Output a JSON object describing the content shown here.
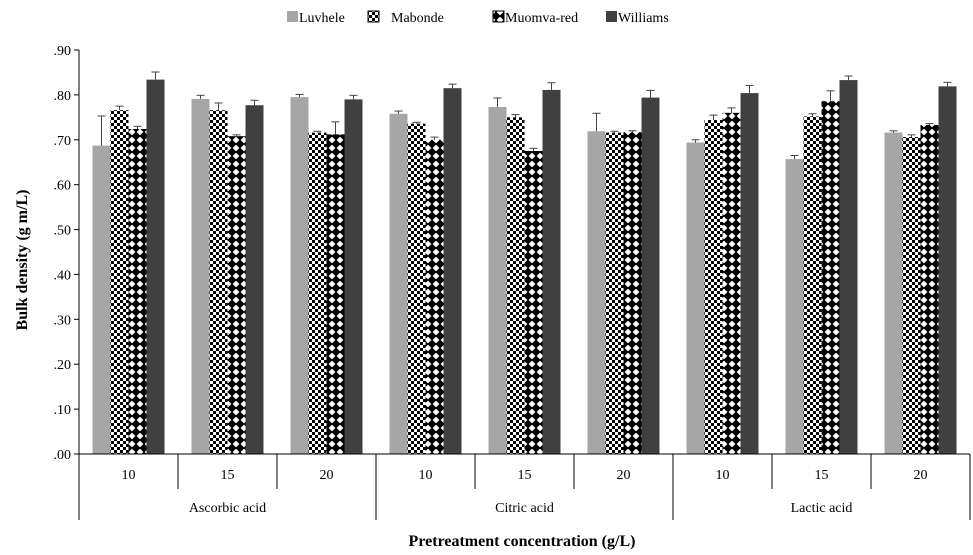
{
  "chart_data": {
    "type": "bar",
    "xlabel": "Pretreatment concentration (g/L)",
    "ylabel": "Bulk density (g m/L)",
    "ylim": [
      0,
      0.9
    ],
    "yticks": [
      ".00",
      ".10",
      ".20",
      ".30",
      ".40",
      ".50",
      ".60",
      ".70",
      ".80",
      ".90"
    ],
    "legend_position": "top-center",
    "groups": [
      {
        "label": "Ascorbic acid",
        "categories": [
          "10",
          "15",
          "20"
        ]
      },
      {
        "label": "Citric acid",
        "categories": [
          "10",
          "15",
          "20"
        ]
      },
      {
        "label": "Lactic acid",
        "categories": [
          "10",
          "15",
          "20"
        ]
      }
    ],
    "series": [
      {
        "name": "Luvhele",
        "pattern": "solid-light-gray",
        "color": "#a6a6a6",
        "values": [
          0.687,
          0.791,
          0.795,
          0.758,
          0.773,
          0.719,
          0.694,
          0.657,
          0.716
        ],
        "errors": [
          0.066,
          0.008,
          0.006,
          0.006,
          0.02,
          0.04,
          0.006,
          0.008,
          0.004
        ]
      },
      {
        "name": "Mabonde",
        "pattern": "checkered",
        "color": "#000000",
        "values": [
          0.766,
          0.766,
          0.716,
          0.736,
          0.75,
          0.716,
          0.744,
          0.752,
          0.706
        ],
        "errors": [
          0.009,
          0.016,
          0.003,
          0.003,
          0.006,
          0.003,
          0.011,
          0.006,
          0.005
        ]
      },
      {
        "name": "Muomva-red",
        "pattern": "diamond",
        "color": "#000000",
        "values": [
          0.724,
          0.708,
          0.712,
          0.7,
          0.675,
          0.717,
          0.76,
          0.786,
          0.733
        ],
        "errors": [
          0.006,
          0.003,
          0.028,
          0.006,
          0.006,
          0.003,
          0.011,
          0.023,
          0.003
        ]
      },
      {
        "name": "Williams",
        "pattern": "solid-dark-gray",
        "color": "#404040",
        "values": [
          0.834,
          0.777,
          0.79,
          0.815,
          0.811,
          0.794,
          0.804,
          0.833,
          0.819
        ],
        "errors": [
          0.017,
          0.011,
          0.009,
          0.009,
          0.016,
          0.016,
          0.017,
          0.009,
          0.009
        ]
      }
    ]
  }
}
